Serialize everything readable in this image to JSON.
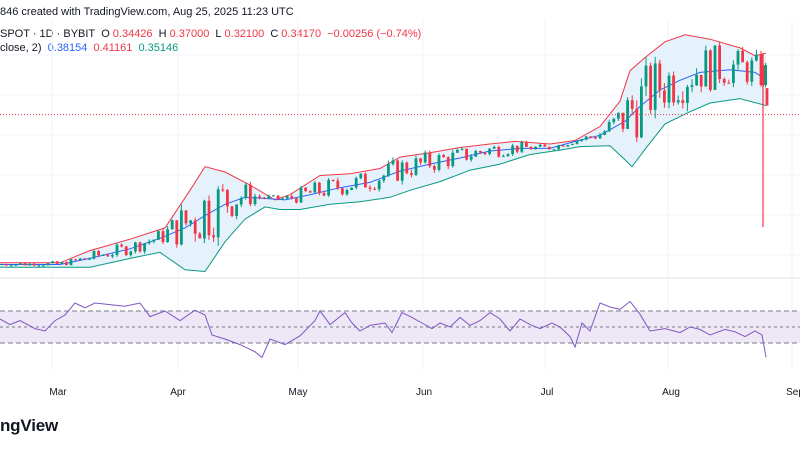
{
  "header": {
    "created_text": "846 created with TradingView.com, Aug 25, 2025 11:23 UTC"
  },
  "legend": {
    "symbol": "SPOT · 1D · BYBIT",
    "open_label": "O",
    "open": "0.34426",
    "high_label": "H",
    "high": "0.37000",
    "low_label": "L",
    "low": "0.32100",
    "close_label": "C",
    "close": "0.34170",
    "change": "−0.00256 (−0.74%)",
    "bb_label": "close, 2)",
    "bb_basis": "0.38154",
    "bb_upper": "0.41161",
    "bb_lower": "0.35146"
  },
  "colors": {
    "up": "#089981",
    "down": "#f23645",
    "bb_basis": "#2962ff",
    "bb_upper": "#f23645",
    "bb_lower": "#089981",
    "bb_fill": "#e6f2fb",
    "osc_line": "#7e57c2",
    "osc_band": "#ede7f6"
  },
  "footer": {
    "brand": "ngView"
  },
  "chart_data": [
    {
      "type": "candlestick",
      "title": "",
      "x_axis_labels": [
        "Mar",
        "Apr",
        "May",
        "Jun",
        "Jul",
        "Aug",
        "Sep"
      ],
      "current_price_line": 0.3417,
      "series": [
        {
          "name": "Bollinger basis",
          "points": [
            [
              0,
              0.17
            ],
            [
              60,
              0.17
            ],
            [
              90,
              0.177
            ],
            [
              130,
              0.188
            ],
            [
              160,
              0.2
            ],
            [
              185,
              0.212
            ],
            [
              205,
              0.226
            ],
            [
              225,
              0.239
            ],
            [
              245,
              0.247
            ],
            [
              262,
              0.246
            ],
            [
              285,
              0.244
            ],
            [
              310,
              0.25
            ],
            [
              340,
              0.258
            ],
            [
              370,
              0.264
            ],
            [
              400,
              0.277
            ],
            [
              430,
              0.285
            ],
            [
              460,
              0.292
            ],
            [
              490,
              0.3
            ],
            [
              520,
              0.303
            ],
            [
              550,
              0.303
            ],
            [
              575,
              0.311
            ],
            [
              600,
              0.318
            ],
            [
              625,
              0.334
            ],
            [
              640,
              0.351
            ],
            [
              660,
              0.37
            ],
            [
              680,
              0.381
            ],
            [
              700,
              0.39
            ],
            [
              730,
              0.393
            ],
            [
              755,
              0.39
            ],
            [
              766,
              0.382
            ]
          ]
        },
        {
          "name": "Bollinger upper",
          "points": [
            [
              0,
              0.172
            ],
            [
              60,
              0.172
            ],
            [
              90,
              0.186
            ],
            [
              130,
              0.199
            ],
            [
              165,
              0.212
            ],
            [
              190,
              0.255
            ],
            [
              205,
              0.282
            ],
            [
              225,
              0.276
            ],
            [
              250,
              0.261
            ],
            [
              275,
              0.244
            ],
            [
              290,
              0.25
            ],
            [
              320,
              0.272
            ],
            [
              350,
              0.274
            ],
            [
              380,
              0.28
            ],
            [
              400,
              0.293
            ],
            [
              430,
              0.298
            ],
            [
              460,
              0.304
            ],
            [
              490,
              0.308
            ],
            [
              515,
              0.311
            ],
            [
              550,
              0.308
            ],
            [
              575,
              0.312
            ],
            [
              600,
              0.328
            ],
            [
              620,
              0.357
            ],
            [
              630,
              0.392
            ],
            [
              645,
              0.407
            ],
            [
              665,
              0.425
            ],
            [
              685,
              0.433
            ],
            [
              710,
              0.428
            ],
            [
              740,
              0.418
            ],
            [
              755,
              0.409
            ],
            [
              766,
              0.412
            ]
          ]
        },
        {
          "name": "Bollinger lower",
          "points": [
            [
              0,
              0.167
            ],
            [
              60,
              0.167
            ],
            [
              90,
              0.167
            ],
            [
              130,
              0.177
            ],
            [
              160,
              0.184
            ],
            [
              185,
              0.164
            ],
            [
              205,
              0.162
            ],
            [
              225,
              0.196
            ],
            [
              245,
              0.222
            ],
            [
              265,
              0.236
            ],
            [
              280,
              0.233
            ],
            [
              300,
              0.233
            ],
            [
              330,
              0.239
            ],
            [
              360,
              0.242
            ],
            [
              390,
              0.247
            ],
            [
              410,
              0.255
            ],
            [
              440,
              0.265
            ],
            [
              470,
              0.278
            ],
            [
              500,
              0.285
            ],
            [
              530,
              0.296
            ],
            [
              560,
              0.301
            ],
            [
              580,
              0.305
            ],
            [
              610,
              0.306
            ],
            [
              625,
              0.29
            ],
            [
              632,
              0.282
            ],
            [
              645,
              0.302
            ],
            [
              665,
              0.331
            ],
            [
              690,
              0.345
            ],
            [
              710,
              0.355
            ],
            [
              740,
              0.36
            ],
            [
              766,
              0.352
            ]
          ]
        },
        {
          "name": "Oscillator",
          "points": [
            [
              0,
              60
            ],
            [
              10,
              53
            ],
            [
              20,
              58
            ],
            [
              35,
              48
            ],
            [
              45,
              45
            ],
            [
              55,
              58
            ],
            [
              65,
              65
            ],
            [
              75,
              80
            ],
            [
              85,
              74
            ],
            [
              95,
              80
            ],
            [
              110,
              78
            ],
            [
              125,
              76
            ],
            [
              140,
              80
            ],
            [
              150,
              63
            ],
            [
              165,
              70
            ],
            [
              180,
              58
            ],
            [
              195,
              71
            ],
            [
              205,
              65
            ],
            [
              212,
              40
            ],
            [
              225,
              35
            ],
            [
              240,
              28
            ],
            [
              255,
              19
            ],
            [
              262,
              12
            ],
            [
              270,
              35
            ],
            [
              285,
              28
            ],
            [
              300,
              39
            ],
            [
              315,
              58
            ],
            [
              320,
              70
            ],
            [
              330,
              53
            ],
            [
              345,
              68
            ],
            [
              352,
              55
            ],
            [
              360,
              45
            ],
            [
              370,
              52
            ],
            [
              385,
              55
            ],
            [
              392,
              43
            ],
            [
              402,
              68
            ],
            [
              412,
              62
            ],
            [
              422,
              55
            ],
            [
              432,
              48
            ],
            [
              440,
              55
            ],
            [
              450,
              50
            ],
            [
              460,
              62
            ],
            [
              470,
              52
            ],
            [
              480,
              58
            ],
            [
              490,
              68
            ],
            [
              500,
              60
            ],
            [
              510,
              45
            ],
            [
              520,
              60
            ],
            [
              530,
              53
            ],
            [
              540,
              48
            ],
            [
              552,
              55
            ],
            [
              560,
              50
            ],
            [
              570,
              38
            ],
            [
              575,
              25
            ],
            [
              582,
              55
            ],
            [
              590,
              45
            ],
            [
              600,
              80
            ],
            [
              610,
              75
            ],
            [
              620,
              72
            ],
            [
              630,
              82
            ],
            [
              640,
              66
            ],
            [
              650,
              45
            ],
            [
              665,
              48
            ],
            [
              680,
              43
            ],
            [
              690,
              50
            ],
            [
              700,
              47
            ],
            [
              710,
              40
            ],
            [
              725,
              47
            ],
            [
              735,
              44
            ],
            [
              745,
              38
            ],
            [
              755,
              45
            ],
            [
              762,
              40
            ],
            [
              766,
              12
            ]
          ]
        }
      ]
    }
  ]
}
